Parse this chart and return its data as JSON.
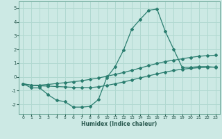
{
  "xlabel": "Humidex (Indice chaleur)",
  "bg_color": "#cce9e4",
  "grid_color": "#b0d8d0",
  "line_color": "#2a7d6f",
  "xlim": [
    -0.5,
    23.5
  ],
  "ylim": [
    -2.7,
    5.5
  ],
  "xticks": [
    0,
    1,
    2,
    3,
    4,
    5,
    6,
    7,
    8,
    9,
    10,
    11,
    12,
    13,
    14,
    15,
    16,
    17,
    18,
    19,
    20,
    21,
    22,
    23
  ],
  "yticks": [
    -2,
    -1,
    0,
    1,
    2,
    3,
    4,
    5
  ],
  "line1_x": [
    0,
    1,
    2,
    3,
    4,
    5,
    6,
    7,
    8,
    9,
    10,
    11,
    12,
    13,
    14,
    15,
    16,
    17,
    18,
    19,
    20,
    21,
    22,
    23
  ],
  "line1_y": [
    -0.5,
    -0.8,
    -0.8,
    -1.3,
    -1.7,
    -1.8,
    -2.2,
    -2.2,
    -2.15,
    -1.65,
    -0.05,
    0.75,
    1.95,
    3.5,
    4.2,
    4.85,
    4.95,
    3.3,
    2.0,
    0.7,
    0.7,
    0.75,
    0.75,
    0.7
  ],
  "line2_x": [
    0,
    1,
    2,
    3,
    4,
    5,
    6,
    7,
    8,
    9,
    10,
    11,
    12,
    13,
    14,
    15,
    16,
    17,
    18,
    19,
    20,
    21,
    22,
    23
  ],
  "line2_y": [
    -0.5,
    -0.6,
    -0.6,
    -0.55,
    -0.48,
    -0.42,
    -0.35,
    -0.28,
    -0.18,
    -0.08,
    0.05,
    0.18,
    0.32,
    0.48,
    0.65,
    0.82,
    0.98,
    1.12,
    1.22,
    1.32,
    1.42,
    1.5,
    1.55,
    1.58
  ],
  "line3_x": [
    0,
    1,
    2,
    3,
    4,
    5,
    6,
    7,
    8,
    9,
    10,
    11,
    12,
    13,
    14,
    15,
    16,
    17,
    18,
    19,
    20,
    21,
    22,
    23
  ],
  "line3_y": [
    -0.5,
    -0.62,
    -0.65,
    -0.67,
    -0.7,
    -0.73,
    -0.76,
    -0.78,
    -0.78,
    -0.72,
    -0.62,
    -0.5,
    -0.37,
    -0.22,
    -0.07,
    0.08,
    0.22,
    0.35,
    0.47,
    0.56,
    0.62,
    0.67,
    0.7,
    0.72
  ]
}
